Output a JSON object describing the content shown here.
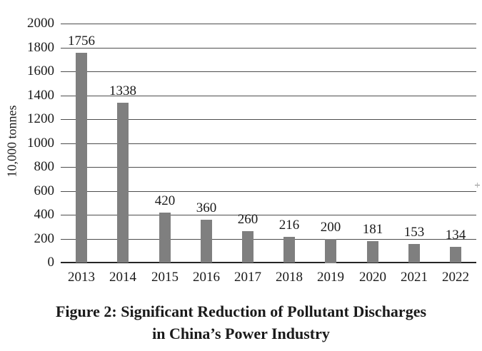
{
  "chart_data": {
    "type": "bar",
    "title": "Figure 2: Significant Reduction of Pollutant Discharges in China’s Power Industry",
    "title_lines": [
      "Figure 2: Significant Reduction of Pollutant Discharges",
      "in China’s Power Industry"
    ],
    "categories": [
      "2013",
      "2014",
      "2015",
      "2016",
      "2017",
      "2018",
      "2019",
      "2020",
      "2021",
      "2022"
    ],
    "values": [
      1756,
      1338,
      420,
      360,
      260,
      216,
      200,
      181,
      153,
      134
    ],
    "xlabel": "",
    "ylabel": "10,000 tonnes",
    "ylim": [
      0,
      2000
    ],
    "ytick_step": 200,
    "yticks": [
      0,
      200,
      400,
      600,
      800,
      1000,
      1200,
      1400,
      1600,
      1800,
      2000
    ],
    "grid": "horizontal",
    "legend": "none",
    "bar_value_labels": true,
    "colors": {
      "bar": "#7f7f7f",
      "gridline": "#4d4d4d",
      "axis": "#262626",
      "text": "#1a1a1a",
      "background": "#ffffff"
    }
  }
}
